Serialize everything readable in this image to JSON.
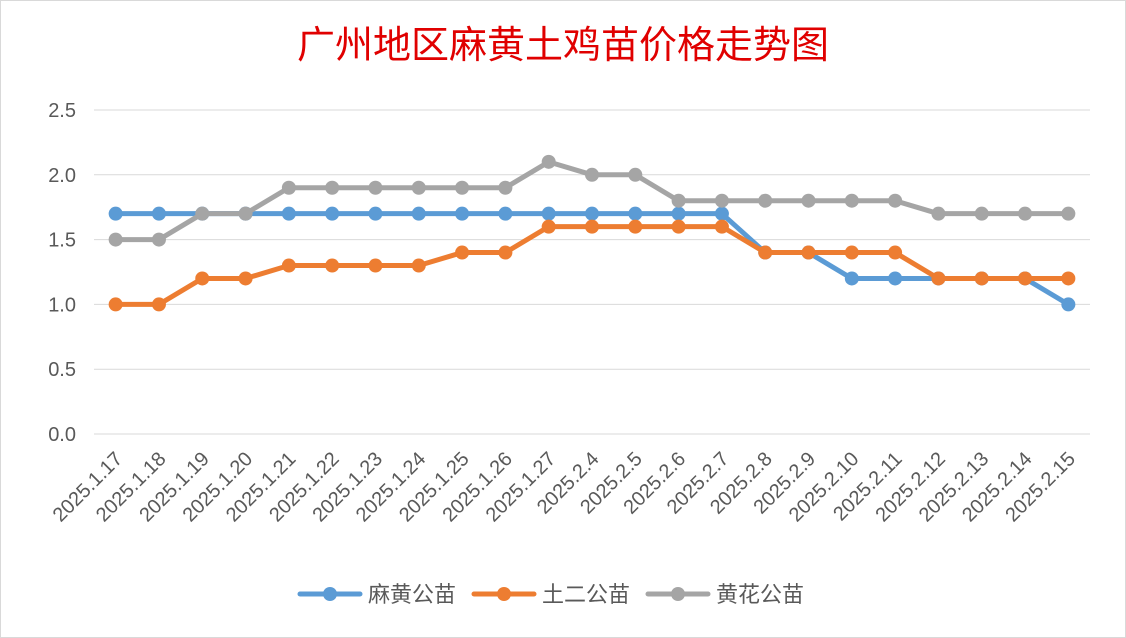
{
  "chart_data": {
    "type": "line",
    "title": "广州地区麻黄土鸡苗价格走势图",
    "xlabel": "",
    "ylabel": "",
    "ylim": [
      0,
      2.5
    ],
    "yticks": [
      "0.0",
      "0.5",
      "1.0",
      "1.5",
      "2.0",
      "2.5"
    ],
    "grid": true,
    "legend_position": "bottom",
    "categories": [
      "2025.1.17",
      "2025.1.18",
      "2025.1.19",
      "2025.1.20",
      "2025.1.21",
      "2025.1.22",
      "2025.1.23",
      "2025.1.24",
      "2025.1.25",
      "2025.1.26",
      "2025.1.27",
      "2025.2.4",
      "2025.2.5",
      "2025.2.6",
      "2025.2.7",
      "2025.2.8",
      "2025.2.9",
      "2025.2.10",
      "2025.2.11",
      "2025.2.12",
      "2025.2.13",
      "2025.2.14",
      "2025.2.15"
    ],
    "series": [
      {
        "name": "麻黄公苗",
        "color": "#5b9bd5",
        "values": [
          1.7,
          1.7,
          1.7,
          1.7,
          1.7,
          1.7,
          1.7,
          1.7,
          1.7,
          1.7,
          1.7,
          1.7,
          1.7,
          1.7,
          1.7,
          1.4,
          1.4,
          1.2,
          1.2,
          1.2,
          1.2,
          1.2,
          1.0
        ]
      },
      {
        "name": "土二公苗",
        "color": "#ed7d31",
        "values": [
          1.0,
          1.0,
          1.2,
          1.2,
          1.3,
          1.3,
          1.3,
          1.3,
          1.4,
          1.4,
          1.6,
          1.6,
          1.6,
          1.6,
          1.6,
          1.4,
          1.4,
          1.4,
          1.4,
          1.2,
          1.2,
          1.2,
          1.2
        ]
      },
      {
        "name": "黄花公苗",
        "color": "#a5a5a5",
        "values": [
          1.5,
          1.5,
          1.7,
          1.7,
          1.9,
          1.9,
          1.9,
          1.9,
          1.9,
          1.9,
          2.1,
          2.0,
          2.0,
          1.8,
          1.8,
          1.8,
          1.8,
          1.8,
          1.8,
          1.7,
          1.7,
          1.7,
          1.7
        ]
      }
    ]
  }
}
